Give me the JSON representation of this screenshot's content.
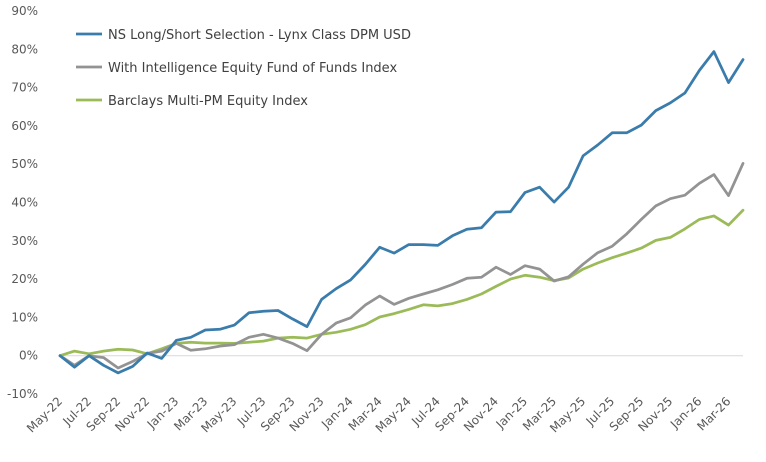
{
  "chart_data": {
    "type": "line",
    "title": "",
    "xlabel": "",
    "ylabel": "",
    "ylim": [
      -10,
      90
    ],
    "y_ticks": [
      "-10%",
      "0%",
      "10%",
      "20%",
      "30%",
      "40%",
      "50%",
      "60%",
      "70%",
      "80%",
      "90%"
    ],
    "y_tick_values": [
      -10,
      0,
      10,
      20,
      30,
      40,
      50,
      60,
      70,
      80,
      90
    ],
    "grid": "off",
    "legend_position": "top-left",
    "x_tick_labels": [
      "May-22",
      "Jul-22",
      "Sep-22",
      "Nov-22",
      "Jan-23",
      "Mar-23",
      "May-23",
      "Jul-23",
      "Sep-23",
      "Nov-23",
      "Jan-24",
      "Mar-24",
      "May-24",
      "Jul-24",
      "Sep-24",
      "Nov-24",
      "Jan-25",
      "Mar-25",
      "May-25",
      "Jul-25",
      "Sep-25",
      "Nov-25",
      "Jan-26",
      "Mar-26"
    ],
    "categories": [
      "May-22",
      "Jun-22",
      "Jul-22",
      "Aug-22",
      "Sep-22",
      "Oct-22",
      "Nov-22",
      "Dec-22",
      "Jan-23",
      "Feb-23",
      "Mar-23",
      "Apr-23",
      "May-23",
      "Jun-23",
      "Jul-23",
      "Aug-23",
      "Sep-23",
      "Oct-23",
      "Nov-23",
      "Dec-23",
      "Jan-24",
      "Feb-24",
      "Mar-24",
      "Apr-24",
      "May-24",
      "Jun-24",
      "Jul-24",
      "Aug-24",
      "Sep-24",
      "Oct-24",
      "Nov-24",
      "Dec-24",
      "Jan-25",
      "Feb-25",
      "Mar-25",
      "Apr-25",
      "May-25",
      "Jun-25",
      "Jul-25",
      "Aug-25",
      "Sep-25",
      "Oct-25",
      "Nov-25",
      "Dec-25",
      "Jan-26",
      "Feb-26",
      "Mar-26",
      "Apr-26"
    ],
    "series": [
      {
        "name": "NS Long/Short Selection - Lynx Class DPM USD",
        "color": "#3a7cab",
        "values": [
          0,
          -3,
          0,
          -2.5,
          -4.5,
          -2.8,
          0.7,
          -0.7,
          4,
          4.8,
          6.7,
          6.9,
          8,
          11.2,
          11.6,
          11.8,
          9.6,
          7.6,
          14.7,
          17.5,
          19.8,
          23.8,
          28.3,
          26.8,
          29,
          29,
          28.8,
          31.3,
          33,
          33.4,
          37.5,
          37.6,
          42.6,
          44,
          40.1,
          44,
          52.2,
          55,
          58.2,
          58.2,
          60.2,
          64,
          66,
          68.6,
          74.5,
          79.4,
          71.3,
          77.3
        ]
      },
      {
        "name": "With Intelligence Equity Fund of Funds Index",
        "color": "#939393",
        "values": [
          0,
          -2.5,
          0,
          -0.5,
          -3.2,
          -1.5,
          0.6,
          1.2,
          3.2,
          1.4,
          1.8,
          2.5,
          2.9,
          4.8,
          5.6,
          4.6,
          3.2,
          1.3,
          5.6,
          8.5,
          9.9,
          13.2,
          15.6,
          13.4,
          15,
          16.1,
          17.2,
          18.6,
          20.2,
          20.5,
          23.1,
          21.2,
          23.5,
          22.6,
          19.5,
          20.6,
          23.9,
          26.9,
          28.6,
          31.8,
          35.6,
          39.1,
          41,
          41.9,
          45,
          47.3,
          41.8,
          50.2
        ]
      },
      {
        "name": "Barclays Multi-PM Equity Index",
        "color": "#9bbb59",
        "values": [
          0,
          1.2,
          0.5,
          1.2,
          1.7,
          1.5,
          0.5,
          1.8,
          3.2,
          3.5,
          3.3,
          3.3,
          3.2,
          3.5,
          3.8,
          4.6,
          4.8,
          4.6,
          5.6,
          6.1,
          6.9,
          8.1,
          10.1,
          11,
          12.1,
          13.3,
          13,
          13.6,
          14.7,
          16.1,
          18.1,
          20,
          21,
          20.5,
          19.6,
          20.3,
          22.6,
          24.2,
          25.6,
          26.8,
          28.1,
          30.1,
          30.9,
          33.1,
          35.6,
          36.5,
          34.1,
          38
        ]
      }
    ]
  }
}
